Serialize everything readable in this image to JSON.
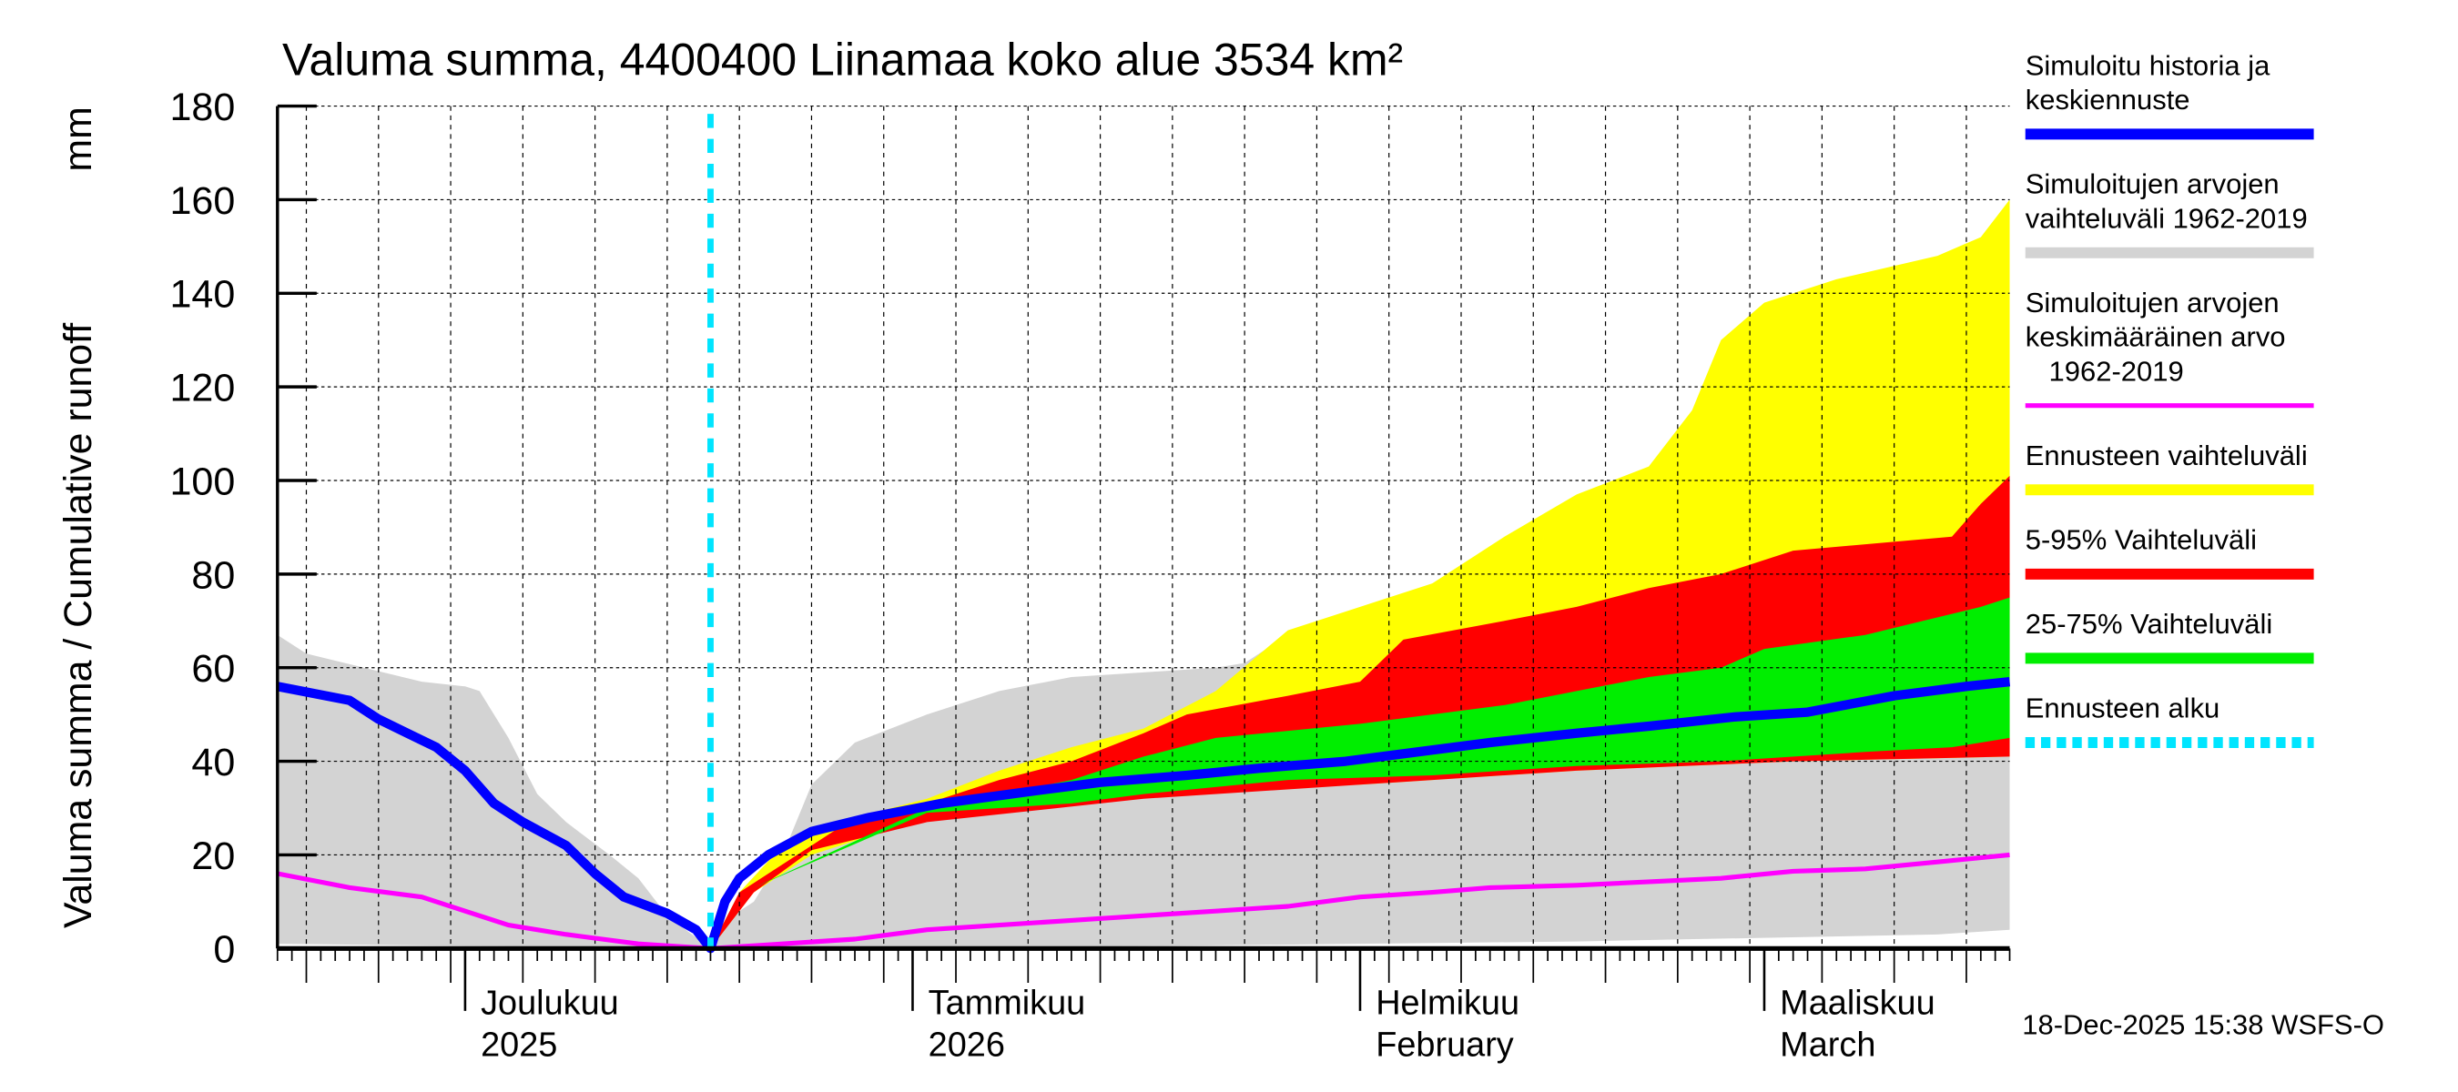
{
  "chart_data": {
    "type": "area",
    "title": "Valuma summa, 4400400 Liinamaa koko alue 3534 km²",
    "ylabel": "Valuma summa / Cumulative runoff",
    "yunit": "mm",
    "ylim": [
      0,
      180
    ],
    "yticks": [
      "0",
      "20",
      "40",
      "60",
      "80",
      "100",
      "120",
      "140",
      "160",
      "180"
    ],
    "x_unit": "days since 2025-11-18",
    "xlim": [
      0,
      120
    ],
    "forecast_start_day": 30,
    "month_labels": [
      {
        "day": 13,
        "line1": "Joulukuu",
        "line2": "2025"
      },
      {
        "day": 44,
        "line1": "Tammikuu",
        "line2": "2026"
      },
      {
        "day": 75,
        "line1": "Helmikuu",
        "line2": "February"
      },
      {
        "day": 103,
        "line1": "Maaliskuu",
        "line2": "March"
      }
    ],
    "timestamp": "18-Dec-2025 15:38 WSFS-O",
    "colors": {
      "grey": "#d3d3d3",
      "yellow": "#ffff00",
      "red": "#ff0000",
      "green": "#00ee00",
      "blue": "#0000ff",
      "magenta": "#ff00ff",
      "cyan": "#00e5ff"
    },
    "bands": [
      {
        "name": "Simuloitujen arvojen vaihteluväli 1962-2019",
        "color": "#d3d3d3",
        "upper": [
          [
            0,
            67
          ],
          [
            2,
            63
          ],
          [
            6,
            60
          ],
          [
            10,
            57
          ],
          [
            13,
            56
          ],
          [
            14,
            55
          ],
          [
            16,
            45
          ],
          [
            18,
            33
          ],
          [
            20,
            27
          ],
          [
            23,
            20
          ],
          [
            25,
            15
          ],
          [
            27,
            7
          ],
          [
            30,
            0
          ],
          [
            31,
            6
          ],
          [
            33,
            10
          ],
          [
            35,
            20
          ],
          [
            37,
            35
          ],
          [
            40,
            44
          ],
          [
            45,
            50
          ],
          [
            50,
            55
          ],
          [
            55,
            58
          ],
          [
            60,
            59
          ],
          [
            65,
            60
          ],
          [
            67,
            61
          ],
          [
            70,
            67
          ],
          [
            75,
            70
          ],
          [
            80,
            78
          ],
          [
            85,
            80
          ],
          [
            90,
            83
          ],
          [
            100,
            85
          ],
          [
            105,
            91
          ],
          [
            110,
            95
          ],
          [
            115,
            98
          ],
          [
            118,
            102
          ],
          [
            120,
            107
          ]
        ],
        "lower": [
          [
            0,
            1
          ],
          [
            30,
            0
          ],
          [
            60,
            0.5
          ],
          [
            90,
            1.5
          ],
          [
            115,
            3
          ],
          [
            120,
            4
          ]
        ]
      },
      {
        "name": "Ennusteen vaihteluväli",
        "color": "#ffff00",
        "upper": [
          [
            30,
            0
          ],
          [
            32,
            12
          ],
          [
            35,
            22
          ],
          [
            40,
            28
          ],
          [
            45,
            32
          ],
          [
            50,
            38
          ],
          [
            55,
            43
          ],
          [
            60,
            47
          ],
          [
            65,
            55
          ],
          [
            70,
            68
          ],
          [
            75,
            73
          ],
          [
            80,
            78
          ],
          [
            85,
            88
          ],
          [
            90,
            97
          ],
          [
            95,
            103
          ],
          [
            98,
            115
          ],
          [
            100,
            130
          ],
          [
            103,
            138
          ],
          [
            108,
            143
          ],
          [
            115,
            148
          ],
          [
            118,
            152
          ],
          [
            120,
            160
          ]
        ],
        "lower": [
          [
            30,
            0
          ],
          [
            33,
            12
          ],
          [
            37,
            20
          ],
          [
            45,
            28
          ],
          [
            60,
            33
          ],
          [
            75,
            35
          ],
          [
            90,
            38
          ],
          [
            105,
            40
          ],
          [
            120,
            41
          ]
        ]
      },
      {
        "name": "5-95% Vaihteluväli",
        "color": "#ff0000",
        "upper": [
          [
            30,
            0
          ],
          [
            32,
            12
          ],
          [
            40,
            28
          ],
          [
            45,
            31
          ],
          [
            50,
            36
          ],
          [
            55,
            40
          ],
          [
            60,
            46
          ],
          [
            63,
            50
          ],
          [
            70,
            54
          ],
          [
            75,
            57
          ],
          [
            78,
            66
          ],
          [
            85,
            70
          ],
          [
            90,
            73
          ],
          [
            95,
            77
          ],
          [
            100,
            80
          ],
          [
            105,
            85
          ],
          [
            116,
            88
          ],
          [
            118,
            95
          ],
          [
            120,
            101
          ]
        ],
        "lower": [
          [
            30,
            0
          ],
          [
            33,
            12
          ],
          [
            37,
            21
          ],
          [
            45,
            27
          ],
          [
            60,
            32
          ],
          [
            75,
            35
          ],
          [
            90,
            38
          ],
          [
            105,
            40
          ],
          [
            120,
            41
          ]
        ]
      },
      {
        "name": "25-75% Vaihteluväli",
        "color": "#00ee00",
        "upper": [
          [
            30,
            0
          ],
          [
            33,
            13
          ],
          [
            45,
            30
          ],
          [
            50,
            33
          ],
          [
            55,
            36
          ],
          [
            60,
            41
          ],
          [
            65,
            45
          ],
          [
            75,
            48
          ],
          [
            85,
            52
          ],
          [
            90,
            55
          ],
          [
            95,
            58
          ],
          [
            100,
            60
          ],
          [
            103,
            64
          ],
          [
            110,
            67
          ],
          [
            114,
            70
          ],
          [
            118,
            73
          ],
          [
            120,
            75
          ]
        ],
        "lower": [
          [
            30,
            0
          ],
          [
            33,
            13
          ],
          [
            45,
            29
          ],
          [
            55,
            31
          ],
          [
            60,
            33
          ],
          [
            70,
            36
          ],
          [
            80,
            37
          ],
          [
            90,
            39
          ],
          [
            100,
            40
          ],
          [
            110,
            42
          ],
          [
            116,
            43
          ],
          [
            120,
            45
          ]
        ]
      }
    ],
    "series": [
      {
        "name": "Simuloitujen arvojen keskimääräinen arvo 1962-2019",
        "color": "#ff00ff",
        "points": [
          [
            0,
            16
          ],
          [
            5,
            13
          ],
          [
            10,
            11
          ],
          [
            13,
            8
          ],
          [
            16,
            5
          ],
          [
            20,
            3
          ],
          [
            25,
            1
          ],
          [
            30,
            0
          ],
          [
            35,
            1
          ],
          [
            40,
            2
          ],
          [
            45,
            4
          ],
          [
            55,
            6
          ],
          [
            65,
            8
          ],
          [
            70,
            9
          ],
          [
            75,
            11
          ],
          [
            80,
            12
          ],
          [
            84,
            13
          ],
          [
            90,
            13.5
          ],
          [
            100,
            15
          ],
          [
            105,
            16.5
          ],
          [
            110,
            17
          ],
          [
            115,
            18.5
          ],
          [
            120,
            20
          ]
        ]
      },
      {
        "name": "Simuloitu historia ja keskiennuste",
        "color": "#0000ff",
        "points": [
          [
            0,
            56
          ],
          [
            5,
            53
          ],
          [
            7,
            49
          ],
          [
            9,
            46
          ],
          [
            11,
            43
          ],
          [
            13,
            38
          ],
          [
            15,
            31
          ],
          [
            17,
            27
          ],
          [
            20,
            22
          ],
          [
            22,
            16
          ],
          [
            24,
            11
          ],
          [
            27,
            7.5
          ],
          [
            29,
            4
          ],
          [
            30,
            0
          ],
          [
            31,
            10
          ],
          [
            32,
            15
          ],
          [
            34,
            20
          ],
          [
            37,
            25
          ],
          [
            41,
            28
          ],
          [
            46,
            31
          ],
          [
            52,
            33.5
          ],
          [
            57,
            35.5
          ],
          [
            63,
            37
          ],
          [
            68,
            38.5
          ],
          [
            74,
            40
          ],
          [
            79,
            42
          ],
          [
            84,
            44
          ],
          [
            90,
            46
          ],
          [
            95,
            47.5
          ],
          [
            101,
            49.5
          ],
          [
            106,
            50.5
          ],
          [
            112,
            54
          ],
          [
            117,
            56
          ],
          [
            120,
            57
          ]
        ]
      }
    ],
    "legend": [
      {
        "lines": [
          "Simuloitu historia ja",
          "keskiennuste"
        ],
        "color": "#0000ff",
        "style": "solid"
      },
      {
        "lines": [
          "Simuloitujen arvojen",
          "vaihteluväli 1962-2019"
        ],
        "color": "#d3d3d3",
        "style": "solid"
      },
      {
        "lines": [
          "Simuloitujen arvojen",
          "keskimääräinen arvo",
          "   1962-2019"
        ],
        "color": "#ff00ff",
        "style": "thin"
      },
      {
        "lines": [
          "Ennusteen vaihteluväli"
        ],
        "color": "#ffff00",
        "style": "solid"
      },
      {
        "lines": [
          "5-95% Vaihteluväli"
        ],
        "color": "#ff0000",
        "style": "solid"
      },
      {
        "lines": [
          "25-75% Vaihteluväli"
        ],
        "color": "#00ee00",
        "style": "solid"
      },
      {
        "lines": [
          "Ennusteen alku"
        ],
        "color": "#00e5ff",
        "style": "dotted"
      }
    ],
    "legend_placement": "right"
  }
}
